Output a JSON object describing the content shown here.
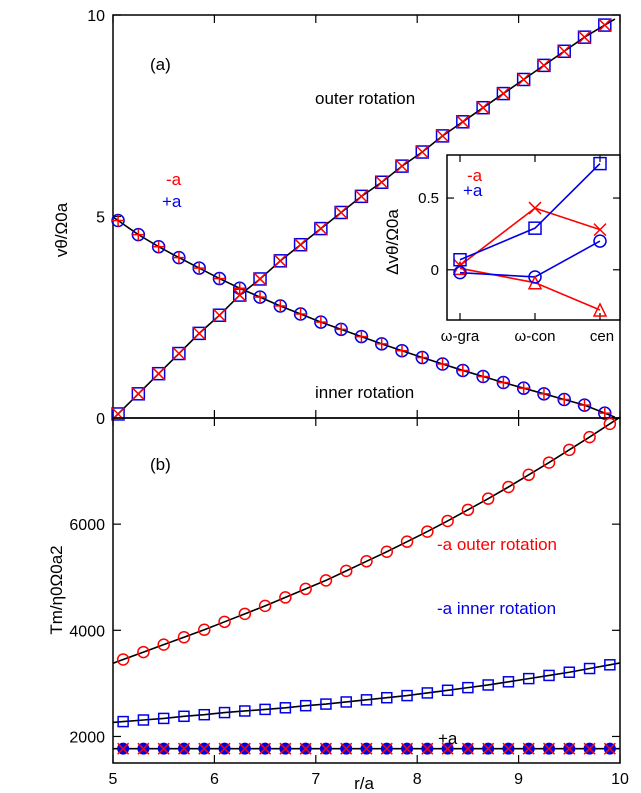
{
  "colors": {
    "red": "#ff0000",
    "blue": "#0000e6",
    "line": "#000000"
  },
  "chart_data": [
    {
      "id": "a",
      "type": "scatter",
      "panel_label": "(a)",
      "xlim": [
        5,
        10
      ],
      "ylim": [
        0,
        10
      ],
      "yticks": [
        0,
        5,
        10
      ],
      "ylabel": "vθ/Ω0a",
      "grid": false,
      "annotations": {
        "outer": "outer rotation",
        "inner": "inner rotation",
        "minus_a": "-a",
        "plus_a": "+a"
      },
      "series": [
        {
          "key": "outer_minus",
          "marker": "x",
          "color": "red",
          "x": [
            5.05,
            5.25,
            5.45,
            5.65,
            5.85,
            6.05,
            6.25,
            6.45,
            6.65,
            6.85,
            7.05,
            7.25,
            7.45,
            7.65,
            7.85,
            8.05,
            8.25,
            8.45,
            8.65,
            8.85,
            9.05,
            9.25,
            9.45,
            9.65,
            9.85
          ],
          "y": [
            0.1,
            0.6,
            1.1,
            1.6,
            2.1,
            2.55,
            3.05,
            3.45,
            3.9,
            4.3,
            4.7,
            5.1,
            5.5,
            5.85,
            6.25,
            6.6,
            7.0,
            7.35,
            7.7,
            8.05,
            8.4,
            8.75,
            9.1,
            9.45,
            9.75
          ]
        },
        {
          "key": "outer_plus",
          "marker": "square",
          "color": "blue",
          "x": [
            5.05,
            5.25,
            5.45,
            5.65,
            5.85,
            6.05,
            6.25,
            6.45,
            6.65,
            6.85,
            7.05,
            7.25,
            7.45,
            7.65,
            7.85,
            8.05,
            8.25,
            8.45,
            8.65,
            8.85,
            9.05,
            9.25,
            9.45,
            9.65,
            9.85
          ],
          "y": [
            0.1,
            0.6,
            1.1,
            1.6,
            2.1,
            2.55,
            3.05,
            3.45,
            3.9,
            4.3,
            4.7,
            5.1,
            5.5,
            5.85,
            6.25,
            6.6,
            7.0,
            7.35,
            7.7,
            8.05,
            8.4,
            8.75,
            9.1,
            9.45,
            9.75
          ]
        },
        {
          "key": "inner_minus",
          "marker": "plus",
          "color": "red",
          "x": [
            5.05,
            5.25,
            5.45,
            5.65,
            5.85,
            6.05,
            6.25,
            6.45,
            6.65,
            6.85,
            7.05,
            7.25,
            7.45,
            7.65,
            7.85,
            8.05,
            8.25,
            8.45,
            8.65,
            8.85,
            9.05,
            9.25,
            9.45,
            9.65,
            9.85
          ],
          "y": [
            4.9,
            4.55,
            4.25,
            3.98,
            3.72,
            3.46,
            3.22,
            3.0,
            2.78,
            2.58,
            2.38,
            2.2,
            2.02,
            1.84,
            1.67,
            1.5,
            1.34,
            1.18,
            1.03,
            0.88,
            0.74,
            0.6,
            0.46,
            0.32,
            0.12
          ]
        },
        {
          "key": "inner_plus",
          "marker": "circle",
          "color": "blue",
          "x": [
            5.05,
            5.25,
            5.45,
            5.65,
            5.85,
            6.05,
            6.25,
            6.45,
            6.65,
            6.85,
            7.05,
            7.25,
            7.45,
            7.65,
            7.85,
            8.05,
            8.25,
            8.45,
            8.65,
            8.85,
            9.05,
            9.25,
            9.45,
            9.65,
            9.85
          ],
          "y": [
            4.9,
            4.55,
            4.25,
            3.98,
            3.72,
            3.46,
            3.22,
            3.0,
            2.78,
            2.58,
            2.38,
            2.2,
            2.02,
            1.84,
            1.67,
            1.5,
            1.34,
            1.18,
            1.03,
            0.88,
            0.74,
            0.6,
            0.46,
            0.32,
            0.12
          ]
        }
      ]
    },
    {
      "id": "inset",
      "type": "line",
      "ylabel": "Δvθ/Ω0a",
      "ylim": [
        -0.35,
        0.8
      ],
      "yticks": [
        0,
        0.5
      ],
      "ytick_labels": [
        "0",
        "0.5"
      ],
      "categories": [
        "ω-gra",
        "ω-con",
        "cen"
      ],
      "legend": {
        "minus_a": "-a",
        "plus_a": "+a",
        "placement": "top-left"
      },
      "series": [
        {
          "key": "minus_outer",
          "marker": "x",
          "color": "red",
          "values": [
            0.03,
            0.43,
            0.28
          ]
        },
        {
          "key": "minus_inner",
          "marker": "triangle",
          "color": "red",
          "values": [
            0.01,
            -0.09,
            -0.28
          ]
        },
        {
          "key": "plus_outer",
          "marker": "square",
          "color": "blue",
          "values": [
            0.07,
            0.29,
            0.74
          ]
        },
        {
          "key": "plus_inner",
          "marker": "circle",
          "color": "blue",
          "values": [
            -0.02,
            -0.05,
            0.2
          ]
        }
      ]
    },
    {
      "id": "b",
      "type": "scatter",
      "panel_label": "(b)",
      "xlim": [
        5,
        10
      ],
      "ylim": [
        1500,
        8000
      ],
      "yticks": [
        2000,
        4000,
        6000
      ],
      "xticks": [
        5,
        6,
        7,
        8,
        9,
        10
      ],
      "xlabel": "r/a",
      "ylabel": "Tm/η0Ω0a2",
      "annotations": {
        "outer": "-a  outer rotation",
        "inner": "-a  inner rotation",
        "plus": "+a"
      },
      "series": [
        {
          "key": "minus_outer",
          "marker": "circle",
          "color": "red",
          "x": [
            5.1,
            5.3,
            5.5,
            5.7,
            5.9,
            6.1,
            6.3,
            6.5,
            6.7,
            6.9,
            7.1,
            7.3,
            7.5,
            7.7,
            7.9,
            8.1,
            8.3,
            8.5,
            8.7,
            8.9,
            9.1,
            9.3,
            9.5,
            9.7,
            9.9
          ],
          "y": [
            3450,
            3590,
            3730,
            3870,
            4010,
            4160,
            4310,
            4460,
            4620,
            4780,
            4940,
            5120,
            5300,
            5480,
            5670,
            5860,
            6060,
            6270,
            6480,
            6700,
            6930,
            7160,
            7400,
            7640,
            7890
          ]
        },
        {
          "key": "minus_inner",
          "marker": "square",
          "color": "blue",
          "x": [
            5.1,
            5.3,
            5.5,
            5.7,
            5.9,
            6.1,
            6.3,
            6.5,
            6.7,
            6.9,
            7.1,
            7.3,
            7.5,
            7.7,
            7.9,
            8.1,
            8.3,
            8.5,
            8.7,
            8.9,
            9.1,
            9.3,
            9.5,
            9.7,
            9.9
          ],
          "y": [
            2280,
            2310,
            2340,
            2380,
            2410,
            2450,
            2480,
            2510,
            2540,
            2580,
            2610,
            2650,
            2690,
            2730,
            2770,
            2820,
            2870,
            2920,
            2970,
            3030,
            3090,
            3150,
            3210,
            3280,
            3350
          ]
        },
        {
          "key": "plus_filled",
          "marker": "filled-circle",
          "color": "blue",
          "x": [
            5.1,
            5.3,
            5.5,
            5.7,
            5.9,
            6.1,
            6.3,
            6.5,
            6.7,
            6.9,
            7.1,
            7.3,
            7.5,
            7.7,
            7.9,
            8.1,
            8.3,
            8.5,
            8.7,
            8.9,
            9.1,
            9.3,
            9.5,
            9.7,
            9.9
          ],
          "y": [
            1770,
            1770,
            1770,
            1770,
            1770,
            1770,
            1770,
            1770,
            1770,
            1770,
            1770,
            1770,
            1770,
            1770,
            1770,
            1770,
            1770,
            1770,
            1770,
            1770,
            1770,
            1770,
            1770,
            1770,
            1770
          ]
        },
        {
          "key": "plus_cross",
          "marker": "x",
          "color": "red",
          "x": [
            5.1,
            5.3,
            5.5,
            5.7,
            5.9,
            6.1,
            6.3,
            6.5,
            6.7,
            6.9,
            7.1,
            7.3,
            7.5,
            7.7,
            7.9,
            8.1,
            8.3,
            8.5,
            8.7,
            8.9,
            9.1,
            9.3,
            9.5,
            9.7,
            9.9
          ],
          "y": [
            1770,
            1770,
            1770,
            1770,
            1770,
            1770,
            1770,
            1770,
            1770,
            1770,
            1770,
            1770,
            1770,
            1770,
            1770,
            1770,
            1770,
            1770,
            1770,
            1770,
            1770,
            1770,
            1770,
            1770,
            1770
          ]
        }
      ]
    }
  ]
}
